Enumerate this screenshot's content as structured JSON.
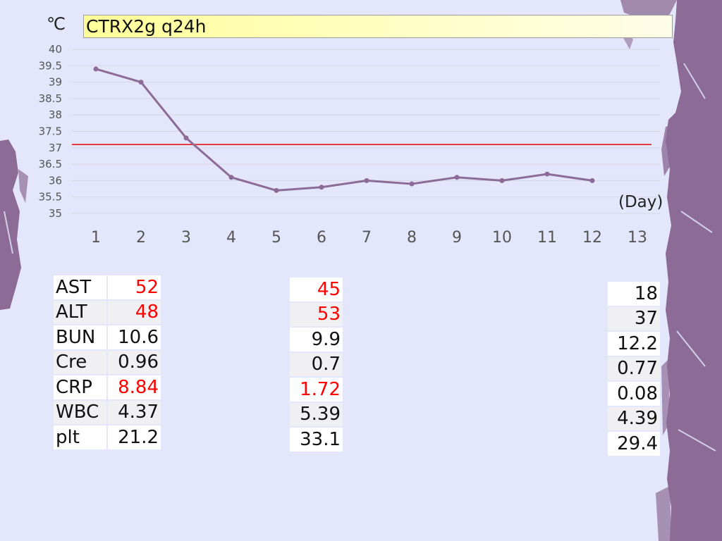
{
  "header": {
    "unit_label": "℃",
    "title": "CTRX2g q24h"
  },
  "chart_data": {
    "type": "line",
    "x": [
      1,
      2,
      3,
      4,
      5,
      6,
      7,
      8,
      9,
      10,
      11,
      12
    ],
    "x_ticks": [
      "1",
      "2",
      "3",
      "4",
      "5",
      "6",
      "7",
      "8",
      "9",
      "10",
      "11",
      "12",
      "13"
    ],
    "xlim": [
      1,
      13
    ],
    "xlabel": "(Day)",
    "ylabel": "℃",
    "ylim": [
      35,
      40
    ],
    "y_ticks": [
      "35",
      "35.5",
      "36",
      "36.5",
      "37",
      "37.5",
      "38",
      "38.5",
      "39",
      "39.5",
      "40"
    ],
    "series": [
      {
        "values": [
          39.4,
          39.0,
          37.3,
          36.1,
          35.7,
          35.8,
          36.0,
          35.9,
          36.1,
          36.0,
          36.2,
          36.0
        ],
        "color": "#8c6b96"
      }
    ],
    "reference_line": {
      "y": 37.1,
      "color": "#e8151b"
    },
    "grid": true
  },
  "labs": {
    "first": [
      {
        "name": "AST",
        "value": "52",
        "high": true
      },
      {
        "name": "ALT",
        "value": "48",
        "high": true
      },
      {
        "name": "BUN",
        "value": "10.6",
        "high": false
      },
      {
        "name": "Cre",
        "value": "0.96",
        "high": false
      },
      {
        "name": "CRP",
        "value": "8.84",
        "high": true
      },
      {
        "name": "WBC",
        "value": "4.37",
        "high": false
      },
      {
        "name": "plt",
        "value": "21.2",
        "high": false
      }
    ],
    "second": [
      {
        "value": "45",
        "high": true
      },
      {
        "value": "53",
        "high": true
      },
      {
        "value": "9.9",
        "high": false
      },
      {
        "value": "0.7",
        "high": false
      },
      {
        "value": "1.72",
        "high": true
      },
      {
        "value": "5.39",
        "high": false
      },
      {
        "value": "33.1",
        "high": false
      }
    ],
    "third": [
      {
        "value": "18",
        "high": false
      },
      {
        "value": "37",
        "high": false
      },
      {
        "value": "12.2",
        "high": false
      },
      {
        "value": "0.77",
        "high": false
      },
      {
        "value": "0.08",
        "high": false
      },
      {
        "value": "4.39",
        "high": false
      },
      {
        "value": "29.4",
        "high": false
      }
    ]
  },
  "colors": {
    "background": "#e4e7fb",
    "decoration": "#8c6b96",
    "high_value": "#ff0000"
  }
}
